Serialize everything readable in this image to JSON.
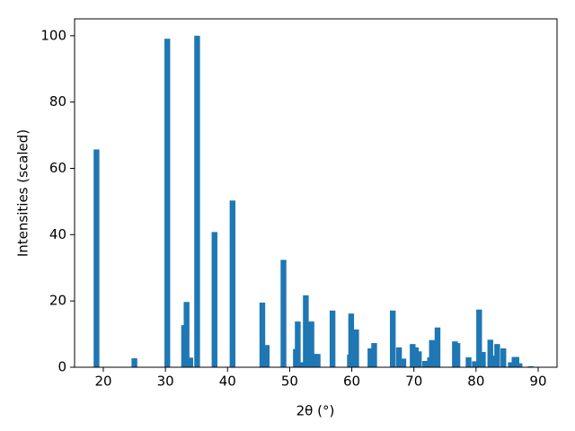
{
  "chart_data": {
    "type": "bar",
    "xlabel": "2θ (°)",
    "ylabel": "Intensities (scaled)",
    "x": [
      18.9,
      25.0,
      30.3,
      33.0,
      33.4,
      34.0,
      35.1,
      37.9,
      40.8,
      45.6,
      46.3,
      49.0,
      51.0,
      51.3,
      51.8,
      52.6,
      53.5,
      54.2,
      54.5,
      56.9,
      59.7,
      59.9,
      60.7,
      63.0,
      63.6,
      66.6,
      67.6,
      68.3,
      69.8,
      70.3,
      70.8,
      71.8,
      72.6,
      72.9,
      73.8,
      76.6,
      77.0,
      78.8,
      79.8,
      80.5,
      81.1,
      82.3,
      82.8,
      83.4,
      84.4,
      85.6,
      86.2,
      86.5,
      87.0,
      88.8
    ],
    "values": [
      65.7,
      2.7,
      99.1,
      12.7,
      19.7,
      2.9,
      100,
      40.8,
      50.3,
      19.5,
      6.7,
      32.4,
      5.5,
      13.8,
      1.5,
      21.7,
      13.8,
      4.0,
      4.0,
      17.1,
      3.8,
      16.2,
      11.4,
      5.7,
      7.3,
      17.1,
      6.0,
      2.6,
      7.0,
      6.0,
      4.8,
      1.9,
      3.0,
      8.2,
      12.0,
      7.8,
      7.3,
      3.0,
      1.8,
      17.4,
      4.6,
      8.3,
      3.5,
      7.0,
      5.7,
      1.5,
      3.1,
      3.1,
      1.2,
      0.3
    ],
    "color": "#1f77b4",
    "xlim": [
      15.37,
      93.04
    ],
    "ylim": [
      0,
      105.1
    ],
    "xticks": [
      20,
      30,
      40,
      50,
      60,
      70,
      80,
      90
    ],
    "yticks": [
      0,
      20,
      40,
      60,
      80,
      100
    ]
  }
}
